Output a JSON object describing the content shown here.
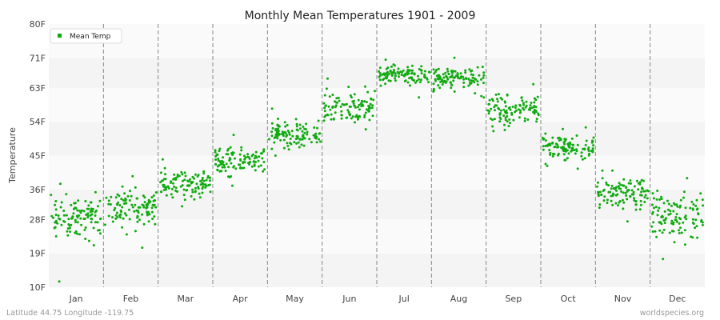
{
  "footer": {
    "location": "Latitude 44.75 Longitude -119.75",
    "source": "worldspecies.org"
  },
  "chart_data": {
    "type": "scatter",
    "title": "Monthly Mean Temperatures 1901 - 2009",
    "xlabel": "",
    "ylabel": "Temperature",
    "categories": [
      "Jan",
      "Feb",
      "Mar",
      "Apr",
      "May",
      "Jun",
      "Jul",
      "Aug",
      "Sep",
      "Oct",
      "Nov",
      "Dec"
    ],
    "ylim": [
      10,
      80
    ],
    "yticks": [
      {
        "value": 10,
        "label": "10F"
      },
      {
        "value": 19,
        "label": "19F"
      },
      {
        "value": 28,
        "label": "28F"
      },
      {
        "value": 36,
        "label": "36F"
      },
      {
        "value": 45,
        "label": "45F"
      },
      {
        "value": 54,
        "label": "54F"
      },
      {
        "value": 63,
        "label": "63F"
      },
      {
        "value": 71,
        "label": "71F"
      },
      {
        "value": 80,
        "label": "80F"
      }
    ],
    "legend": {
      "position": "top-left",
      "entries": [
        "Mean Temp"
      ]
    },
    "series": [
      {
        "name": "Mean Temp",
        "color": "#11aa11",
        "points_per_month": 109,
        "monthly_summary": [
          {
            "month": "Jan",
            "mean": 28.5,
            "min": 11.5,
            "max": 37.5
          },
          {
            "month": "Feb",
            "mean": 31.5,
            "min": 20.5,
            "max": 39.5
          },
          {
            "month": "Mar",
            "mean": 37.5,
            "min": 31.5,
            "max": 44.0
          },
          {
            "month": "Apr",
            "mean": 43.0,
            "min": 37.0,
            "max": 50.5
          },
          {
            "month": "May",
            "mean": 50.5,
            "min": 45.0,
            "max": 57.5
          },
          {
            "month": "Jun",
            "mean": 58.0,
            "min": 52.0,
            "max": 65.5
          },
          {
            "month": "Jul",
            "mean": 66.5,
            "min": 60.5,
            "max": 70.5
          },
          {
            "month": "Aug",
            "mean": 65.5,
            "min": 60.5,
            "max": 71.0
          },
          {
            "month": "Sep",
            "mean": 57.5,
            "min": 51.5,
            "max": 64.0
          },
          {
            "month": "Oct",
            "mean": 47.0,
            "min": 41.5,
            "max": 52.5
          },
          {
            "month": "Nov",
            "mean": 35.0,
            "min": 27.5,
            "max": 41.0
          },
          {
            "month": "Dec",
            "mean": 29.0,
            "min": 17.5,
            "max": 39.0
          }
        ]
      }
    ],
    "grid": {
      "horizontal_bands": true,
      "vertical_month_separators": "dashed"
    }
  },
  "colors": {
    "band_dark": "#f4f4f4",
    "band_light": "#fafafa",
    "separator": "#888888",
    "marker": "#11aa11"
  }
}
